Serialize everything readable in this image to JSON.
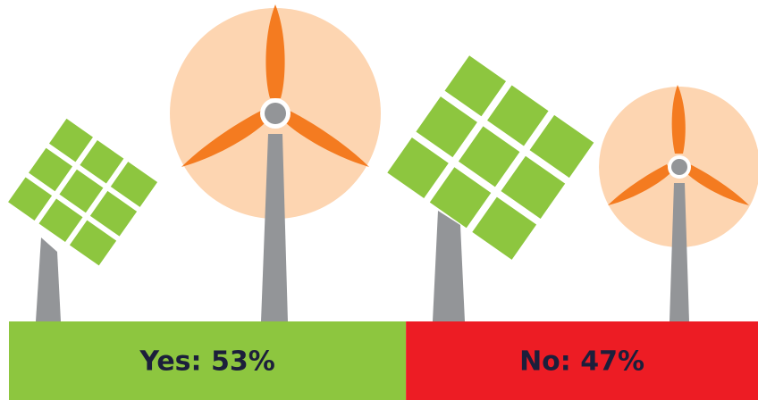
{
  "chart_data": {
    "type": "bar",
    "categories": [
      "Yes",
      "No"
    ],
    "values": [
      53,
      47
    ],
    "value_labels": [
      "Yes: 53%",
      "No: 47%"
    ],
    "colors": [
      "#8dc63f",
      "#ed1c24"
    ]
  }
}
